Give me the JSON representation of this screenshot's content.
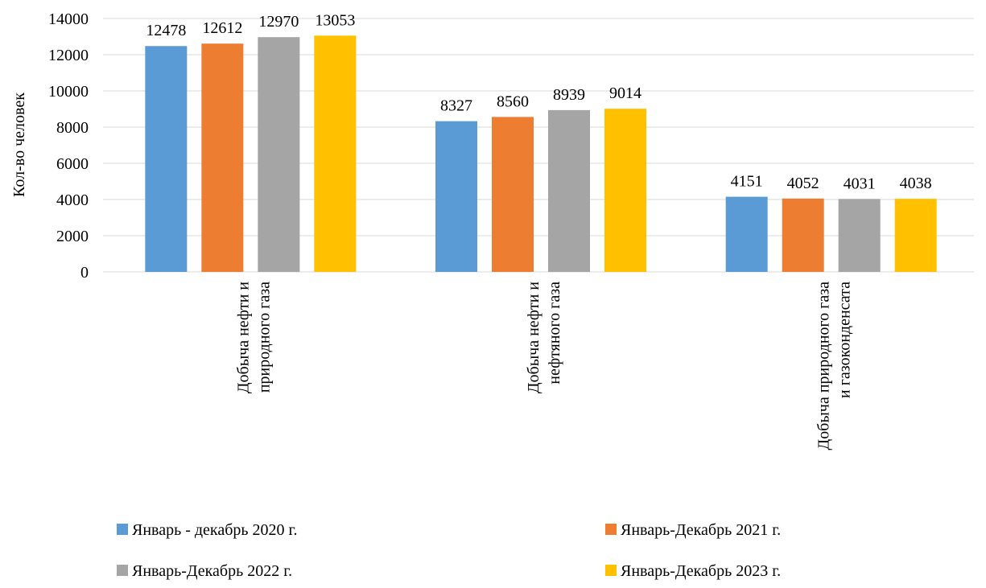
{
  "chart_data": {
    "type": "bar",
    "title": "",
    "xlabel": "",
    "ylabel": "Кол-во человек",
    "ylim": [
      0,
      14000
    ],
    "yticks": [
      0,
      2000,
      4000,
      6000,
      8000,
      10000,
      12000,
      14000
    ],
    "grid": true,
    "legend_position": "bottom",
    "categories": [
      [
        "Добыча нефти и",
        "природного газа"
      ],
      [
        "Добыча нефти и",
        "нефтяного газа"
      ],
      [
        "Добыча природного газа",
        "и газоконденсата"
      ]
    ],
    "series": [
      {
        "name": "Январь - декабрь 2020 г.",
        "color": "#5b9bd5",
        "values": [
          12478,
          8327,
          4151
        ]
      },
      {
        "name": "Январь-Декабрь 2021 г.",
        "color": "#ed7d31",
        "values": [
          12612,
          8560,
          4052
        ]
      },
      {
        "name": "Январь-Декабрь 2022 г.",
        "color": "#a5a5a5",
        "values": [
          12970,
          8939,
          4031
        ]
      },
      {
        "name": "Январь-Декабрь 2023 г.",
        "color": "#ffc000",
        "values": [
          13053,
          9014,
          4038
        ]
      }
    ]
  }
}
